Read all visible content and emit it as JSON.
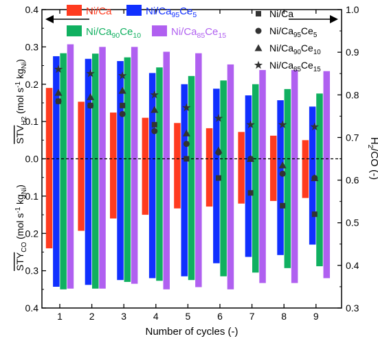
{
  "chart_data": {
    "type": "bar",
    "xlabel": "Number of cycles (-)",
    "categories": [
      "1",
      "2",
      "3",
      "4",
      "5",
      "6",
      "7",
      "8",
      "9"
    ],
    "left_axis": {
      "ylim_top": [
        0.0,
        0.4
      ],
      "ylim_bottom": [
        0.0,
        0.4
      ],
      "ticks": [
        "0.4",
        "0.3",
        "0.2",
        "0.1",
        "0.0",
        "0.1",
        "0.2",
        "0.3",
        "0.4"
      ],
      "label_top_main": "STV",
      "label_top_sub": "H2",
      "label_top_unit": "(mol s",
      "label_top_unit_sup": "-1",
      "label_top_unit_rest": "kg",
      "label_top_unit_sub": "Ni",
      "label_top_unit_close": ")",
      "label_bottom_main": "STY",
      "label_bottom_sub": "CO",
      "label_bottom_unit": "(mol s",
      "label_bottom_unit_sup": "-1",
      "label_bottom_unit_rest": "kg",
      "label_bottom_unit_sub": "Ni",
      "label_bottom_unit_close": ")"
    },
    "right_axis": {
      "ylim": [
        0.3,
        1.0
      ],
      "ticks": [
        "1.0",
        "0.9",
        "0.8",
        "0.7",
        "0.6",
        "0.5",
        "0.4",
        "0.3"
      ],
      "label_main": "H",
      "label_sub": "2",
      "label_rest": "/CO (-)"
    },
    "bar_series": [
      {
        "legend_prefix": "Ni/Ca",
        "legend_parts": [],
        "color": "#ff3b1f",
        "sty_h2": [
          0.19,
          0.153,
          0.124,
          0.11,
          0.096,
          0.082,
          0.072,
          0.062,
          0.05
        ],
        "sty_co": [
          0.24,
          0.193,
          0.16,
          0.15,
          0.133,
          0.128,
          0.12,
          0.113,
          0.105
        ]
      },
      {
        "legend_prefix": "Ni/Ca",
        "legend_parts": [
          [
            "95",
            "Ce"
          ],
          [
            "5",
            ""
          ]
        ],
        "color": "#1030ff",
        "sty_h2": [
          0.275,
          0.268,
          0.262,
          0.23,
          0.2,
          0.188,
          0.17,
          0.157,
          0.14
        ],
        "sty_co": [
          0.343,
          0.338,
          0.325,
          0.32,
          0.315,
          0.28,
          0.263,
          0.258,
          0.23
        ]
      },
      {
        "legend_prefix": "Ni/Ca",
        "legend_parts": [
          [
            "90",
            "Ce"
          ],
          [
            "10",
            ""
          ]
        ],
        "color": "#10b060",
        "sty_h2": [
          0.283,
          0.282,
          0.272,
          0.245,
          0.222,
          0.21,
          0.2,
          0.187,
          0.175
        ],
        "sty_co": [
          0.35,
          0.348,
          0.33,
          0.327,
          0.325,
          0.315,
          0.305,
          0.293,
          0.288
        ]
      },
      {
        "legend_prefix": "Ni/Ca",
        "legend_parts": [
          [
            "85",
            "Ce"
          ],
          [
            "15",
            ""
          ]
        ],
        "color": "#b060f0",
        "sty_h2": [
          0.307,
          0.3,
          0.3,
          0.287,
          0.283,
          0.253,
          0.238,
          0.238,
          0.235
        ],
        "sty_co": [
          0.348,
          0.348,
          0.335,
          0.35,
          0.344,
          0.35,
          0.333,
          0.333,
          0.32
        ]
      }
    ],
    "ratio_series": [
      {
        "legend_prefix": "Ni/Ca",
        "legend_parts": [],
        "marker": "square",
        "values": [
          0.785,
          0.775,
          0.775,
          0.73,
          0.65,
          0.605,
          0.57,
          0.54,
          0.52
        ]
      },
      {
        "legend_prefix": "Ni/Ca",
        "legend_parts": [
          [
            "95",
            "Ce"
          ],
          [
            "5",
            ""
          ]
        ],
        "marker": "circle",
        "values": [
          0.785,
          0.775,
          0.755,
          0.715,
          0.685,
          0.665,
          0.65,
          0.615,
          0.605
        ]
      },
      {
        "legend_prefix": "Ni/Ca",
        "legend_parts": [
          [
            "90",
            "Ce"
          ],
          [
            "10",
            ""
          ]
        ],
        "marker": "triangle",
        "values": [
          0.805,
          0.795,
          0.81,
          0.765,
          0.71,
          0.67,
          0.65,
          0.635,
          0.605
        ]
      },
      {
        "legend_prefix": "Ni/Ca",
        "legend_parts": [
          [
            "85",
            "Ce"
          ],
          [
            "15",
            ""
          ]
        ],
        "marker": "star",
        "values": [
          0.86,
          0.85,
          0.845,
          0.8,
          0.77,
          0.745,
          0.73,
          0.73,
          0.725
        ]
      }
    ]
  }
}
